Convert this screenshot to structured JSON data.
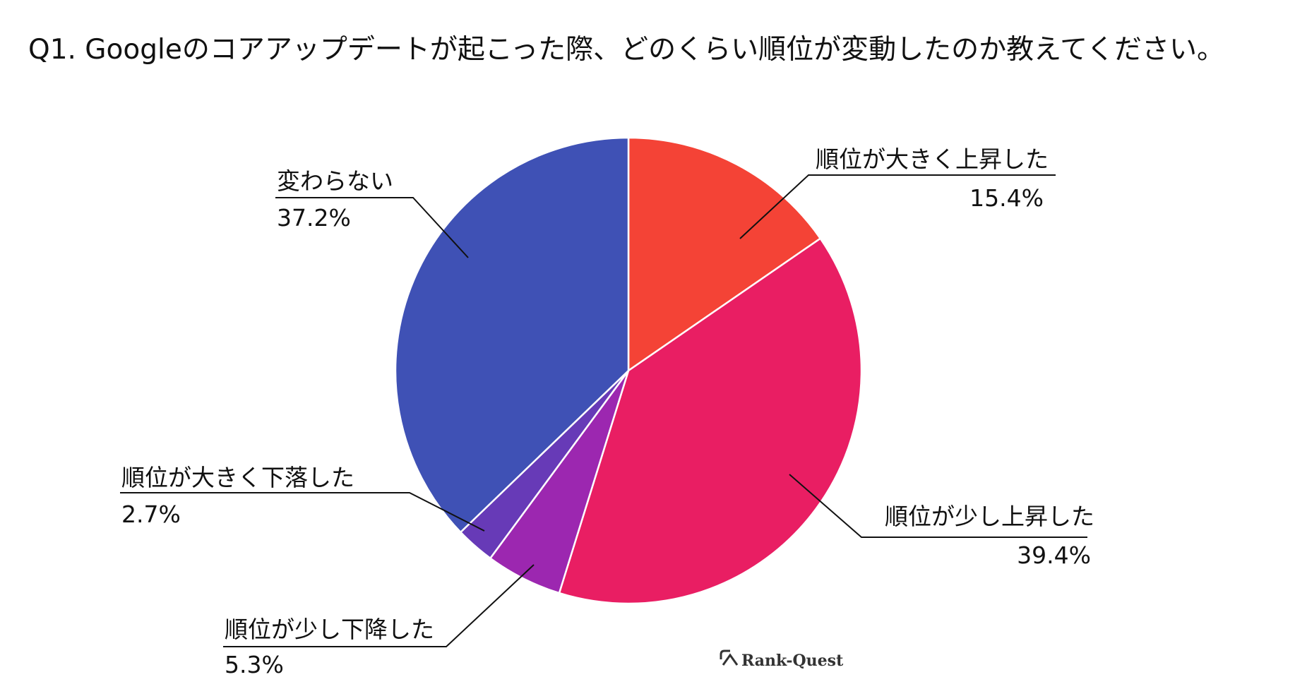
{
  "chart_data": {
    "type": "pie",
    "title": "Q1. Googleのコアアップデートが起こった際、どのくらい順位が変動したのか教えてください。",
    "start": "12 o'clock",
    "direction": "clockwise",
    "slices": [
      {
        "label": "順位が大きく上昇した",
        "value": 15.4,
        "value_label": "15.4%",
        "color": "#f44336"
      },
      {
        "label": "順位が少し上昇した",
        "value": 39.4,
        "value_label": "39.4%",
        "color": "#e91e63"
      },
      {
        "label": "順位が少し下降した",
        "value": 5.3,
        "value_label": "5.3%",
        "color": "#9c27b0"
      },
      {
        "label": "順位が大きく下落した",
        "value": 2.7,
        "value_label": "2.7%",
        "color": "#673ab7"
      },
      {
        "label": "変わらない",
        "value": 37.2,
        "value_label": "37.2%",
        "color": "#3f51b5"
      }
    ]
  },
  "logo": {
    "text": "Rank-Quest"
  }
}
